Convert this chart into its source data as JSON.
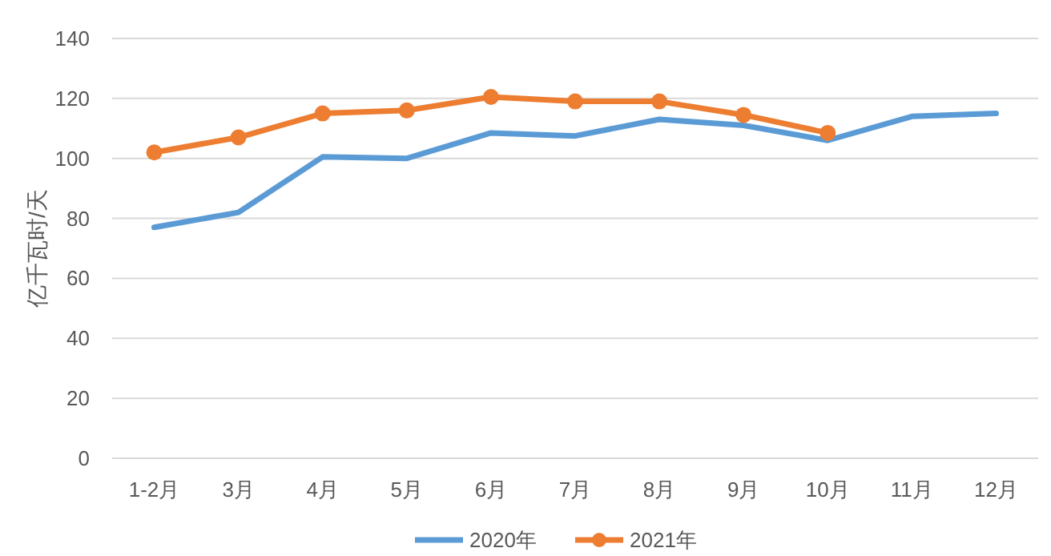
{
  "chart_data": {
    "type": "line",
    "ylabel": "亿千瓦时/天",
    "categories": [
      "1-2月",
      "3月",
      "4月",
      "5月",
      "6月",
      "7月",
      "8月",
      "9月",
      "10月",
      "11月",
      "12月"
    ],
    "series": [
      {
        "name": "2020年",
        "color": "#5b9bd5",
        "marker": "none",
        "values": [
          77,
          82,
          100.5,
          100,
          108.5,
          107.5,
          113,
          111,
          106,
          114,
          115
        ]
      },
      {
        "name": "2021年",
        "color": "#ed7d31",
        "marker": "circle",
        "values": [
          102,
          107,
          115,
          116,
          120.5,
          119,
          119,
          114.5,
          108.5,
          null,
          null
        ]
      }
    ],
    "ylim": [
      0,
      140
    ],
    "yticks": [
      0,
      20,
      40,
      60,
      80,
      100,
      120,
      140
    ],
    "grid": "y",
    "legend": "bottom"
  }
}
